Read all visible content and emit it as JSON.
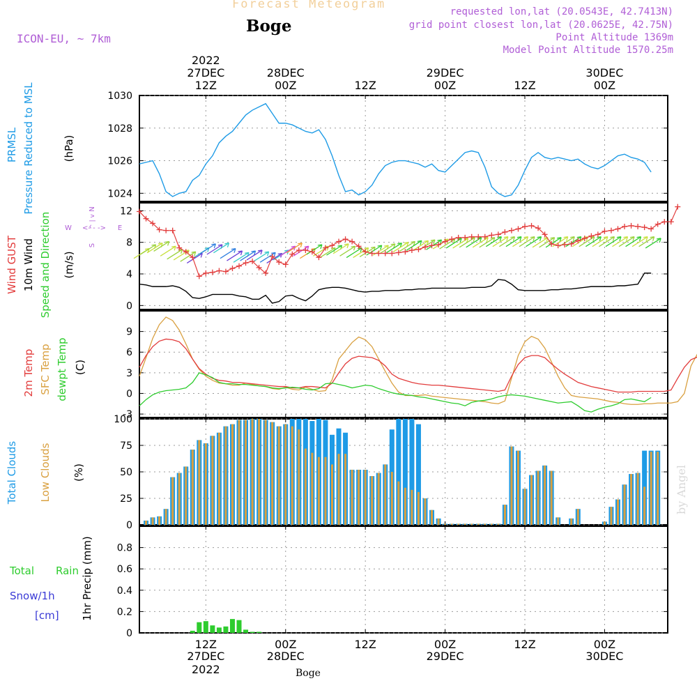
{
  "header": {
    "title_top": "Forecast Meteogram",
    "location": "Boge",
    "model": "ICON-EU, ~ 7km",
    "requested": "requested lon,lat (20.0543E, 42.7413N)",
    "grid_point": "grid point closest lon,lat (20.0625E, 42.75N)",
    "point_altitude": "Point Altitude 1369m",
    "model_altitude": "Model Point Altitude 1570.25m",
    "footer_location": "Boge",
    "credit": "by Angel"
  },
  "colors": {
    "pressure": "#1e9be6",
    "gust": "#e23c3c",
    "wind10": "#000000",
    "temp2m": "#e23c3c",
    "sfc_temp": "#d9a040",
    "dewpt": "#2ecc2e",
    "total_clouds": "#1e9be6",
    "low_clouds": "#d9a040",
    "rain": "#2ecc2e",
    "compass": "#b05ed6"
  },
  "time_axis": {
    "top": {
      "year": "2022",
      "ticks": [
        {
          "t": 12,
          "label": "12Z",
          "date": "27DEC"
        },
        {
          "t": 24,
          "label": "00Z",
          "date": "28DEC"
        },
        {
          "t": 36,
          "label": "12Z",
          "date": ""
        },
        {
          "t": 48,
          "label": "00Z",
          "date": "29DEC"
        },
        {
          "t": 60,
          "label": "12Z",
          "date": ""
        },
        {
          "t": 72,
          "label": "00Z",
          "date": "30DEC"
        }
      ]
    },
    "bottom": {
      "year": "2022",
      "ticks": [
        {
          "t": 12,
          "label": "12Z",
          "date": "27DEC"
        },
        {
          "t": 24,
          "label": "00Z",
          "date": "28DEC"
        },
        {
          "t": 36,
          "label": "12Z",
          "date": ""
        },
        {
          "t": 48,
          "label": "00Z",
          "date": "29DEC"
        },
        {
          "t": 60,
          "label": "12Z",
          "date": ""
        },
        {
          "t": 72,
          "label": "00Z",
          "date": "30DEC"
        }
      ]
    }
  },
  "panel_labels": {
    "pressure": {
      "l1": "PRMSL",
      "l2": "Pressure Reduced to MSL",
      "unit": "(hPa)"
    },
    "wind": {
      "gust": "Wind GUST",
      "w10": "10m Wind",
      "dir": "Speed and Direction",
      "unit": "(m/s)",
      "compass": {
        "n": "N",
        "s": "S",
        "e": "E",
        "w": "W",
        "arrow_ns": "^ | v",
        "arrow_ew": "<- - ->"
      }
    },
    "temp": {
      "t2m": "2m Temp",
      "sfc": "SFC Temp",
      "dew": "dewpt Temp",
      "unit": "(C)"
    },
    "clouds": {
      "total": "Total Clouds",
      "low": "Low Clouds",
      "unit": "(%)"
    },
    "precip": {
      "total": "Total",
      "rain": "Rain",
      "snow": "Snow/1h",
      "snow_unit": "[cm]",
      "axis": "1hr Precip (mm)"
    }
  },
  "chart_data": [
    {
      "type": "line",
      "ylim": [
        1023.5,
        1030
      ],
      "yticks": [
        "1024",
        "1026",
        "1028",
        "1030"
      ],
      "series": [
        {
          "values": [
            1025.8,
            1025.9,
            1026.0,
            1025.2,
            1024.1,
            1023.8,
            1024.0,
            1024.1,
            1024.8,
            1025.1,
            1025.8,
            1026.3,
            1027.1,
            1027.5,
            1027.8,
            1028.3,
            1028.8,
            1029.1,
            1029.3,
            1029.5,
            1028.9,
            1028.3,
            1028.3,
            1028.2,
            1028.0,
            1027.8,
            1027.7,
            1027.9,
            1027.3,
            1026.3,
            1025.1,
            1024.1,
            1024.2,
            1023.9,
            1024.1,
            1024.5,
            1025.2,
            1025.7,
            1025.9,
            1026.0,
            1026.0,
            1025.9,
            1025.8,
            1025.6,
            1025.8,
            1025.4,
            1025.3,
            1025.7,
            1026.1,
            1026.5,
            1026.6,
            1026.5,
            1025.6,
            1024.4,
            1024.0,
            1023.8,
            1023.9,
            1024.5,
            1025.4,
            1026.2,
            1026.5,
            1026.2,
            1026.1,
            1026.2,
            1026.1,
            1026.0,
            1026.1,
            1025.8,
            1025.6,
            1025.5,
            1025.7,
            1026.0,
            1026.3,
            1026.4,
            1026.2,
            1026.1,
            1025.9,
            1025.3
          ]
        }
      ]
    },
    {
      "type": "line",
      "ylim": [
        -0.5,
        13
      ],
      "yticks": [
        "0",
        "4",
        "8",
        "12"
      ],
      "series": [
        {
          "key": "gust",
          "values": [
            11.9,
            11.0,
            10.4,
            9.6,
            9.5,
            9.5,
            7.3,
            6.8,
            6.1,
            3.7,
            4.1,
            4.2,
            4.4,
            4.3,
            4.7,
            5.0,
            5.4,
            5.6,
            4.8,
            4.1,
            6.2,
            5.5,
            5.2,
            6.5,
            7.0,
            7.0,
            6.8,
            6.1,
            7.3,
            7.6,
            8.1,
            8.4,
            8.1,
            7.5,
            6.8,
            6.6,
            6.6,
            6.6,
            6.6,
            6.7,
            6.8,
            7.0,
            7.1,
            7.4,
            7.6,
            7.7,
            8.1,
            8.4,
            8.6,
            8.6,
            8.7,
            8.7,
            8.7,
            8.9,
            9.0,
            9.3,
            9.5,
            9.7,
            10.0,
            10.1,
            9.8,
            9.0,
            7.8,
            7.6,
            7.7,
            7.8,
            8.2,
            8.5,
            8.8,
            9.0,
            9.4,
            9.5,
            9.7,
            10.0,
            10.1,
            10.0,
            9.9,
            9.7,
            10.3,
            10.6,
            10.6,
            12.5
          ]
        },
        {
          "key": "wind10",
          "values": [
            2.7,
            2.6,
            2.4,
            2.4,
            2.4,
            2.5,
            2.3,
            1.8,
            1.0,
            0.9,
            1.1,
            1.4,
            1.4,
            1.4,
            1.4,
            1.2,
            1.1,
            0.8,
            0.8,
            1.3,
            0.3,
            0.5,
            1.2,
            1.3,
            0.9,
            0.6,
            1.2,
            2.0,
            2.2,
            2.3,
            2.3,
            2.2,
            2.0,
            1.8,
            1.7,
            1.8,
            1.8,
            1.9,
            1.9,
            1.9,
            2.0,
            2.0,
            2.1,
            2.1,
            2.2,
            2.2,
            2.2,
            2.2,
            2.2,
            2.2,
            2.3,
            2.3,
            2.3,
            2.5,
            3.3,
            3.2,
            2.7,
            2.0,
            1.9,
            1.9,
            1.9,
            1.9,
            2.0,
            2.0,
            2.1,
            2.1,
            2.2,
            2.3,
            2.4,
            2.4,
            2.4,
            2.4,
            2.5,
            2.5,
            2.6,
            2.7,
            4.1,
            4.1
          ]
        },
        {
          "key": "arrows",
          "values": [
            6.5,
            7.0,
            7.2,
            7.4,
            6.8,
            6.4,
            6.3,
            6.1,
            5.9,
            6.6,
            7.1,
            7.0,
            7.2,
            6.5,
            6.2,
            6.0,
            6.2,
            6.3,
            6.1,
            6.0,
            5.9,
            6.3,
            6.8,
            7.2,
            6.8,
            6.5,
            7.0,
            6.8,
            6.6,
            6.9,
            7.1,
            6.8,
            6.6,
            6.6,
            6.7,
            6.9,
            6.9,
            7.1,
            7.2,
            7.3,
            7.4,
            7.5,
            7.5,
            7.6,
            7.6,
            7.7,
            7.7,
            7.8,
            7.8,
            7.9,
            7.9,
            7.9,
            7.9,
            8.0,
            8.0,
            8.0,
            8.0,
            8.0,
            8.0,
            8.0,
            7.9,
            7.9,
            7.9,
            8.0,
            8.0,
            8.0,
            8.0,
            8.0,
            8.0,
            8.0,
            8.0,
            8.0,
            8.0,
            8.0,
            8.0,
            8.0,
            8.0,
            7.8
          ]
        }
      ]
    },
    {
      "type": "line",
      "ylim": [
        -3.5,
        12
      ],
      "yticks": [
        "-3",
        "0",
        "3",
        "6",
        "9"
      ],
      "series": [
        {
          "key": "temp2m",
          "values": [
            3.8,
            5.5,
            6.8,
            7.6,
            7.9,
            7.8,
            7.5,
            6.5,
            5.0,
            3.6,
            2.8,
            2.2,
            1.9,
            1.8,
            1.6,
            1.6,
            1.5,
            1.4,
            1.3,
            1.2,
            1.1,
            1.0,
            1.0,
            0.8,
            0.8,
            1.0,
            1.0,
            0.9,
            0.8,
            1.5,
            3.0,
            4.3,
            5.1,
            5.4,
            5.3,
            5.2,
            4.8,
            4.0,
            2.8,
            2.2,
            1.9,
            1.6,
            1.4,
            1.3,
            1.2,
            1.2,
            1.1,
            1.0,
            0.9,
            0.8,
            0.7,
            0.6,
            0.5,
            0.4,
            0.3,
            0.5,
            2.5,
            4.2,
            5.2,
            5.5,
            5.5,
            5.2,
            4.3,
            3.5,
            2.8,
            2.2,
            1.6,
            1.3,
            1.0,
            0.8,
            0.6,
            0.4,
            0.2,
            0.2,
            0.2,
            0.3,
            0.3,
            0.3,
            0.3,
            0.3,
            0.5,
            2.2,
            3.8,
            4.9,
            5.3
          ]
        },
        {
          "key": "sfc",
          "values": [
            2.5,
            5.2,
            8.0,
            10.0,
            11.1,
            10.6,
            9.2,
            7.2,
            5.0,
            3.5,
            2.5,
            1.9,
            1.5,
            1.4,
            1.2,
            1.2,
            1.5,
            1.3,
            1.1,
            1.0,
            0.7,
            0.6,
            0.9,
            0.6,
            0.5,
            0.9,
            0.6,
            0.3,
            0.4,
            2.0,
            5.0,
            6.2,
            7.4,
            8.2,
            7.8,
            6.8,
            5.0,
            3.2,
            1.5,
            0.2,
            -0.3,
            -0.3,
            -0.3,
            -0.2,
            -0.4,
            -0.5,
            -0.6,
            -0.7,
            -0.8,
            -0.9,
            -1.0,
            -1.1,
            -1.2,
            -1.4,
            -1.5,
            -1.1,
            2.2,
            5.5,
            7.5,
            8.3,
            7.9,
            6.6,
            4.6,
            2.5,
            0.8,
            -0.3,
            -0.5,
            -0.6,
            -0.7,
            -0.8,
            -1.0,
            -1.2,
            -1.3,
            -1.5,
            -1.6,
            -1.6,
            -1.5,
            -1.5,
            -1.4,
            -1.4,
            -1.4,
            -1.2,
            0.0,
            4.0,
            5.8,
            6.8,
            7.0
          ]
        },
        {
          "key": "dewpt",
          "values": [
            -1.8,
            -0.9,
            -0.2,
            0.2,
            0.4,
            0.5,
            0.6,
            0.8,
            1.6,
            3.0,
            2.7,
            2.3,
            1.6,
            1.4,
            1.4,
            1.3,
            1.3,
            1.2,
            1.1,
            1.0,
            0.8,
            0.7,
            0.8,
            0.9,
            0.8,
            0.6,
            0.5,
            0.7,
            1.4,
            1.5,
            1.3,
            1.1,
            0.8,
            1.0,
            1.2,
            1.1,
            0.7,
            0.4,
            0.1,
            -0.1,
            -0.2,
            -0.3,
            -0.5,
            -0.6,
            -0.8,
            -1.0,
            -1.2,
            -1.4,
            -1.5,
            -1.8,
            -1.3,
            -1.1,
            -1.0,
            -0.8,
            -0.5,
            -0.3,
            -0.2,
            -0.3,
            -0.4,
            -0.6,
            -0.8,
            -1.0,
            -1.2,
            -1.4,
            -1.3,
            -1.2,
            -1.8,
            -2.5,
            -2.7,
            -2.3,
            -2.0,
            -1.8,
            -1.5,
            -0.9,
            -0.8,
            -1.0,
            -1.2,
            -0.6
          ]
        }
      ]
    },
    {
      "type": "bar",
      "ylim": [
        0,
        100
      ],
      "yticks": [
        "0",
        "25",
        "50",
        "75",
        "100"
      ],
      "series": [
        {
          "key": "total",
          "values": [
            0,
            4,
            7,
            8,
            15,
            45,
            49,
            55,
            71,
            80,
            77,
            84,
            87,
            93,
            95,
            99,
            99,
            100,
            100,
            99,
            97,
            93,
            95,
            100,
            100,
            100,
            98,
            100,
            99,
            85,
            91,
            87,
            52,
            52,
            52,
            46,
            49,
            57,
            90,
            100,
            100,
            100,
            95,
            25,
            14,
            6,
            1,
            1,
            1,
            1,
            1,
            1,
            1,
            1,
            1,
            19,
            74,
            70,
            34,
            47,
            51,
            56,
            51,
            7,
            0,
            6,
            15,
            0,
            0,
            0,
            3,
            17,
            24,
            38,
            48,
            49,
            70,
            70,
            70
          ]
        },
        {
          "key": "low",
          "values": [
            0,
            4,
            7,
            8,
            15,
            45,
            49,
            55,
            71,
            80,
            77,
            84,
            87,
            93,
            95,
            99,
            99,
            100,
            100,
            99,
            97,
            93,
            95,
            93,
            90,
            72,
            68,
            64,
            64,
            57,
            67,
            67,
            52,
            52,
            52,
            46,
            49,
            57,
            50,
            41,
            35,
            33,
            31,
            25,
            14,
            6,
            1,
            1,
            1,
            1,
            1,
            1,
            1,
            1,
            1,
            19,
            74,
            70,
            34,
            47,
            51,
            56,
            51,
            7,
            0,
            6,
            15,
            0,
            0,
            0,
            3,
            17,
            24,
            38,
            48,
            49,
            36,
            69,
            69
          ]
        }
      ]
    },
    {
      "type": "bar",
      "ylim": [
        0,
        1.0
      ],
      "yticks": [
        "0",
        "0.2",
        "0.4",
        "0.6",
        "0.8"
      ],
      "series": [
        {
          "key": "rain",
          "values": [
            0,
            0,
            0,
            0,
            0,
            0,
            0,
            0,
            0.02,
            0.1,
            0.11,
            0.07,
            0.05,
            0.06,
            0.13,
            0.12,
            0.03,
            0.01,
            0.01,
            0,
            0,
            0,
            0,
            0,
            0,
            0,
            0,
            0,
            0,
            0,
            0,
            0,
            0,
            0,
            0,
            0,
            0,
            0,
            0,
            0,
            0,
            0,
            0,
            0,
            0,
            0,
            0,
            0,
            0,
            0,
            0,
            0,
            0,
            0,
            0,
            0,
            0,
            0,
            0,
            0,
            0,
            0,
            0,
            0,
            0,
            0,
            0,
            0,
            0,
            0,
            0,
            0,
            0,
            0,
            0,
            0,
            0,
            0,
            0,
            0
          ]
        }
      ]
    }
  ]
}
